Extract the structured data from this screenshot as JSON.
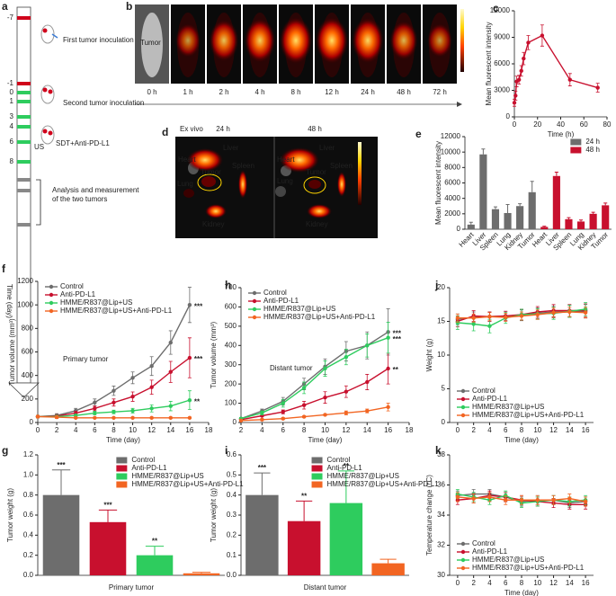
{
  "timeline": {
    "panel": "a",
    "days": [
      "-7",
      "-1",
      "0",
      "1",
      "3",
      "4",
      "6",
      "8"
    ],
    "events": [
      "First tumor inoculation",
      "Second tumor inoculation",
      "SDT+Anti-PD-L1",
      "Analysis and measurement of the two tumors"
    ],
    "us": "US",
    "axis_label": "Time (day)"
  },
  "imaging": {
    "panel": "b",
    "label": "Tumor",
    "times": [
      "0 h",
      "1 h",
      "2 h",
      "4 h",
      "8 h",
      "12 h",
      "24 h",
      "48 h",
      "72 h"
    ]
  },
  "ex_vivo": {
    "panel": "d",
    "title": "Ex vivo",
    "times": [
      "24 h",
      "48 h"
    ],
    "organs": [
      "Heart",
      "Liver",
      "Spleen",
      "Lung",
      "Tumor",
      "Kidney"
    ]
  },
  "chart_data": [
    {
      "type": "line",
      "panel": "c",
      "xlabel": "Time (h)",
      "ylabel": "Mean fluorescent intensity",
      "x": [
        0,
        1,
        2,
        4,
        6,
        8,
        12,
        24,
        48,
        72
      ],
      "series": [
        {
          "color": "#c8102e",
          "values": [
            1600,
            2400,
            4000,
            4200,
            5200,
            6600,
            8400,
            9200,
            4200,
            3300
          ],
          "errors": [
            400,
            500,
            600,
            500,
            600,
            700,
            800,
            1200,
            700,
            500
          ]
        }
      ],
      "xlim": [
        0,
        80
      ],
      "xticks": [
        0,
        20,
        40,
        60,
        80
      ],
      "ylim": [
        0,
        12000
      ],
      "yticks": [
        0,
        3000,
        6000,
        9000,
        12000
      ]
    },
    {
      "type": "bar",
      "panel": "e",
      "ylabel": "Mean fluorescent intensity",
      "categories": [
        "Heart",
        "Liver",
        "Spleen",
        "Lung",
        "Kidney",
        "Tumor",
        "Heart",
        "Liver",
        "Spleen",
        "Lung",
        "Kidney",
        "Tumor"
      ],
      "series": [
        {
          "name": "24 h",
          "color": "#6d6d6d",
          "values": [
            600,
            9700,
            2600,
            2100,
            3000,
            4800,
            null,
            null,
            null,
            null,
            null,
            null
          ],
          "errors": [
            300,
            700,
            300,
            1100,
            300,
            1400,
            null,
            null,
            null,
            null,
            null,
            null
          ]
        },
        {
          "name": "48 h",
          "color": "#c8102e",
          "values": [
            null,
            null,
            null,
            null,
            null,
            null,
            300,
            6900,
            1300,
            1000,
            2000,
            3100
          ],
          "errors": [
            null,
            null,
            null,
            null,
            null,
            null,
            100,
            500,
            200,
            200,
            200,
            300
          ]
        }
      ],
      "ylim": [
        0,
        12000
      ],
      "yticks": [
        0,
        2000,
        4000,
        6000,
        8000,
        10000,
        12000
      ],
      "legend": "upper right"
    },
    {
      "type": "line",
      "panel": "f",
      "xlabel": "Time (day)",
      "ylabel": "Tumor volume (mm³)",
      "note": "Primary tumor",
      "annotations": [
        "***",
        "***",
        "**"
      ],
      "x": [
        0,
        2,
        4,
        6,
        8,
        10,
        12,
        14,
        16
      ],
      "series": [
        {
          "name": "Control",
          "color": "#6d6d6d",
          "values": [
            50,
            60,
            100,
            170,
            270,
            380,
            480,
            680,
            1000
          ],
          "errors": [
            10,
            15,
            20,
            30,
            40,
            50,
            80,
            100,
            150
          ]
        },
        {
          "name": "Anti-PD-L1",
          "color": "#c8102e",
          "values": [
            50,
            55,
            80,
            120,
            170,
            220,
            300,
            430,
            550
          ],
          "errors": [
            10,
            10,
            15,
            20,
            30,
            40,
            60,
            90,
            170
          ]
        },
        {
          "name": "HMME/R837@Lip+US",
          "color": "#2ecc5e",
          "values": [
            50,
            50,
            60,
            80,
            90,
            100,
            120,
            140,
            190
          ],
          "errors": [
            10,
            10,
            10,
            15,
            15,
            20,
            30,
            40,
            80
          ]
        },
        {
          "name": "HMME/R837@Lip+US+Anti-PD-L1",
          "color": "#f26522",
          "values": [
            50,
            45,
            40,
            40,
            40,
            40,
            40,
            40,
            40
          ],
          "errors": [
            10,
            10,
            5,
            5,
            5,
            5,
            5,
            5,
            5
          ]
        }
      ],
      "xlim": [
        0,
        18
      ],
      "xticks": [
        0,
        2,
        4,
        6,
        8,
        10,
        12,
        14,
        16,
        18
      ],
      "ylim": [
        0,
        1200
      ],
      "yticks": [
        0,
        200,
        400,
        600,
        800,
        1000,
        1200
      ],
      "legend": "upper left"
    },
    {
      "type": "bar",
      "panel": "g",
      "xlabel": "Primary tumor",
      "ylabel": "Tumor weight (g)",
      "annotations": [
        "***",
        "***",
        "**"
      ],
      "series": [
        {
          "name": "Control",
          "color": "#6d6d6d",
          "values": [
            0.8
          ],
          "errors": [
            0.25
          ]
        },
        {
          "name": "Anti-PD-L1",
          "color": "#c8102e",
          "values": [
            0.53
          ],
          "errors": [
            0.12
          ]
        },
        {
          "name": "HMME/R837@Lip+US",
          "color": "#2ecc5e",
          "values": [
            0.2
          ],
          "errors": [
            0.09
          ]
        },
        {
          "name": "HMME/R837@Lip+US+Anti-PD-L1",
          "color": "#f26522",
          "values": [
            0.02
          ],
          "errors": [
            0.01
          ]
        }
      ],
      "ylim": [
        0,
        1.2
      ],
      "yticks": [
        {
          "value": 0,
          "label": "0.0"
        },
        0.2,
        0.4,
        0.6,
        0.8,
        {
          "value": 1,
          "label": "1.0"
        },
        1.2
      ],
      "legend": "upper right"
    },
    {
      "type": "line",
      "panel": "h",
      "xlabel": "Time (day)",
      "ylabel": "Tumor volume (mm³)",
      "note": "Distant tumor",
      "annotations": [
        "***",
        "***",
        "**"
      ],
      "x": [
        2,
        4,
        6,
        8,
        10,
        12,
        14,
        16
      ],
      "series": [
        {
          "name": "Control",
          "color": "#6d6d6d",
          "values": [
            20,
            60,
            110,
            200,
            290,
            370,
            400,
            470
          ],
          "errors": [
            5,
            10,
            20,
            30,
            40,
            50,
            70,
            120
          ]
        },
        {
          "name": "Anti-PD-L1",
          "color": "#c8102e",
          "values": [
            15,
            35,
            55,
            90,
            130,
            160,
            210,
            280
          ],
          "errors": [
            5,
            5,
            10,
            20,
            30,
            30,
            40,
            80
          ]
        },
        {
          "name": "HMME/R837@Lip+US",
          "color": "#2ecc5e",
          "values": [
            20,
            50,
            100,
            180,
            280,
            340,
            400,
            440
          ],
          "errors": [
            5,
            10,
            20,
            30,
            40,
            40,
            60,
            80
          ]
        },
        {
          "name": "HMME/R837@Lip+US+Anti-PD-L1",
          "color": "#f26522",
          "values": [
            10,
            15,
            20,
            30,
            40,
            50,
            60,
            80
          ],
          "errors": [
            3,
            5,
            5,
            5,
            5,
            10,
            10,
            20
          ]
        }
      ],
      "xlim": [
        2,
        18
      ],
      "xticks": [
        2,
        4,
        6,
        8,
        10,
        12,
        14,
        16,
        18
      ],
      "ylim": [
        0,
        700
      ],
      "yticks": [
        0,
        100,
        200,
        300,
        400,
        500,
        600,
        700
      ],
      "legend": "upper left"
    },
    {
      "type": "bar",
      "panel": "i",
      "xlabel": "Distant tumor",
      "ylabel": "Tumor weight (g)",
      "annotations": [
        "***",
        "**",
        "**"
      ],
      "series": [
        {
          "name": "Control",
          "color": "#6d6d6d",
          "values": [
            0.4
          ],
          "errors": [
            0.11
          ]
        },
        {
          "name": "Anti-PD-L1",
          "color": "#c8102e",
          "values": [
            0.27
          ],
          "errors": [
            0.1
          ]
        },
        {
          "name": "HMME/R837@Lip+US",
          "color": "#2ecc5e",
          "values": [
            0.36
          ],
          "errors": [
            0.16
          ]
        },
        {
          "name": "HMME/R837@Lip+US+Anti-PD-L1",
          "color": "#f26522",
          "values": [
            0.06
          ],
          "errors": [
            0.02
          ]
        }
      ],
      "ylim": [
        0,
        0.6
      ],
      "yticks": [
        {
          "value": 0,
          "label": "0.0"
        },
        0.1,
        0.2,
        0.3,
        0.4,
        0.5,
        0.6
      ],
      "legend": "upper right"
    },
    {
      "type": "line",
      "panel": "j",
      "xlabel": "Time (day)",
      "ylabel": "Weight (g)",
      "x": [
        0,
        2,
        4,
        6,
        8,
        10,
        12,
        14,
        16
      ],
      "series": [
        {
          "name": "Control",
          "color": "#6d6d6d",
          "values": [
            15.3,
            15.6,
            15.7,
            15.8,
            15.9,
            16.2,
            16.4,
            16.5,
            16.5
          ],
          "errors": [
            0.8,
            0.8,
            0.7,
            0.7,
            0.8,
            0.8,
            0.9,
            0.9,
            1
          ]
        },
        {
          "name": "Anti-PD-L1",
          "color": "#c8102e",
          "values": [
            15,
            15.8,
            15.7,
            15.8,
            16,
            16.4,
            16.6,
            16.6,
            16.6
          ],
          "errors": [
            0.8,
            0.8,
            0.7,
            0.7,
            0.8,
            0.8,
            0.9,
            0.9,
            1
          ]
        },
        {
          "name": "HMME/R837@Lip+US",
          "color": "#2ecc5e",
          "values": [
            14.8,
            14.6,
            14.3,
            15.5,
            16,
            16.1,
            16.2,
            16.5,
            16.8
          ],
          "errors": [
            1,
            1,
            1,
            0.8,
            0.8,
            0.8,
            0.9,
            0.9,
            1
          ]
        },
        {
          "name": "HMME/R837@Lip+US+Anti-PD-L1",
          "color": "#f26522",
          "values": [
            15.5,
            15.5,
            15.7,
            15.6,
            15.8,
            16,
            16.3,
            16.4,
            16.3
          ],
          "errors": [
            0.6,
            0.6,
            0.6,
            0.6,
            0.6,
            0.7,
            0.7,
            0.7,
            0.8
          ]
        }
      ],
      "xlim": [
        -1,
        17
      ],
      "xticks": [
        0,
        2,
        4,
        6,
        8,
        10,
        12,
        14,
        16
      ],
      "ylim": [
        0,
        20
      ],
      "yticks": [
        0,
        5,
        10,
        15,
        20
      ],
      "legend": "lower left"
    },
    {
      "type": "line",
      "panel": "k",
      "xlabel": "Time (day)",
      "ylabel": "Temperature change (°C)",
      "x": [
        0,
        2,
        4,
        6,
        8,
        10,
        12,
        14,
        16
      ],
      "series": [
        {
          "name": "Control",
          "color": "#6d6d6d",
          "values": [
            35.3,
            35.4,
            35.4,
            35.2,
            34.9,
            35,
            35,
            34.8,
            34.9
          ],
          "errors": [
            0.3,
            0.3,
            0.3,
            0.3,
            0.3,
            0.3,
            0.3,
            0.3,
            0.3
          ]
        },
        {
          "name": "Anti-PD-L1",
          "color": "#c8102e",
          "values": [
            35,
            35.1,
            35.3,
            35.2,
            35,
            34.9,
            34.8,
            34.7,
            34.7
          ],
          "errors": [
            0.3,
            0.3,
            0.3,
            0.3,
            0.3,
            0.3,
            0.3,
            0.3,
            0.3
          ]
        },
        {
          "name": "HMME/R837@Lip+US",
          "color": "#2ecc5e",
          "values": [
            35.4,
            35.2,
            35,
            35.3,
            34.8,
            34.9,
            35,
            34.9,
            35
          ],
          "errors": [
            0.3,
            0.3,
            0.3,
            0.3,
            0.3,
            0.3,
            0.3,
            0.3,
            0.3
          ]
        },
        {
          "name": "HMME/R837@Lip+US+Anti-PD-L1",
          "color": "#f26522",
          "values": [
            35.2,
            35.1,
            35.2,
            35,
            35,
            35,
            35,
            35.1,
            34.9
          ],
          "errors": [
            0.3,
            0.3,
            0.3,
            0.3,
            0.3,
            0.3,
            0.3,
            0.3,
            0.3
          ]
        }
      ],
      "xlim": [
        -1,
        17
      ],
      "xticks": [
        0,
        2,
        4,
        6,
        8,
        10,
        12,
        14,
        16
      ],
      "ylim": [
        30,
        38
      ],
      "yticks": [
        30,
        32,
        34,
        36,
        38
      ],
      "legend": "lower left"
    }
  ]
}
